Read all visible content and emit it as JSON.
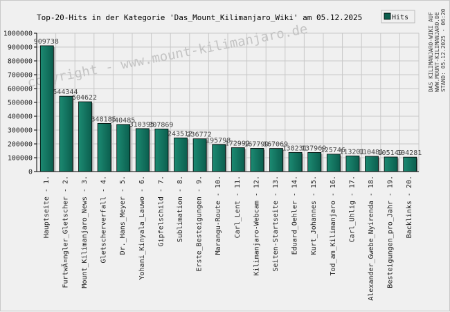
{
  "title": "Top-20-Hits in der Kategorie 'Das_Mount_Kilimanjaro_Wiki' am 05.12.2025",
  "watermark": "copyright - www.mount-kilimanjaro.de",
  "side_note": [
    "DAS KILIMANJARO-WIKI AUF",
    "WWW.MOUNT-KILIMANJARO.DE",
    "STAND: 05.12.2025 - 06:20"
  ],
  "colors": {
    "bar": "#0b5e4e",
    "bar_light": "#1c8a72",
    "grid": "#c8c8c8",
    "background": "#f0f0f0"
  },
  "chart_data": {
    "type": "bar",
    "title": "Top-20-Hits in der Kategorie 'Das_Mount_Kilimanjaro_Wiki' am 05.12.2025",
    "xlabel": "",
    "ylabel": "",
    "ylim": [
      0,
      1000000
    ],
    "yticks": [
      0,
      100000,
      200000,
      300000,
      400000,
      500000,
      600000,
      700000,
      800000,
      900000,
      1000000
    ],
    "grid": true,
    "legend": {
      "position": "top-right",
      "entries": [
        "Hits"
      ]
    },
    "categories": [
      "Hauptseite - 1.",
      "FurtwÃ¤ngler_Gletscher - 2.",
      "Mount_Kilimanjaro_News - 3.",
      "Gletscherverfall - 4.",
      "Dr._Hans_Meyer - 5.",
      "Yohani_Kinyala_Lauwo - 6.",
      "Gipfelschild - 7.",
      "Sublimation - 8.",
      "Erste_Besteigungen - 9.",
      "Marangu-Route - 10.",
      "Carl_Lent - 11.",
      "Kilimanjaro-Webcam - 12.",
      "Seiten-Startseite - 13.",
      "Eduard_Oehler - 14.",
      "Kurt_Johannes - 15.",
      "Tod_am_Kilimanjaro - 16.",
      "Carl_Uhlig - 17.",
      "Alexander_Gwebe_Nyirenda - 18.",
      "Besteigungen_pro_Jahr - 19.",
      "Backlinks - 20."
    ],
    "series": [
      {
        "name": "Hits",
        "values": [
          909738,
          544344,
          504622,
          348185,
          340485,
          310395,
          307869,
          243512,
          236772,
          195798,
          172992,
          167799,
          167069,
          138231,
          137969,
          125746,
          113201,
          110481,
          105149,
          104281
        ]
      }
    ],
    "value_labels": [
      "909738",
      "544344",
      "504622",
      "348185",
      "340485",
      "310395",
      "307869",
      "243512",
      "236772",
      "195798",
      "172992",
      "167799",
      "167069",
      "138231",
      "137969",
      "125746",
      "113201",
      "110481",
      "105149",
      "104281"
    ]
  }
}
